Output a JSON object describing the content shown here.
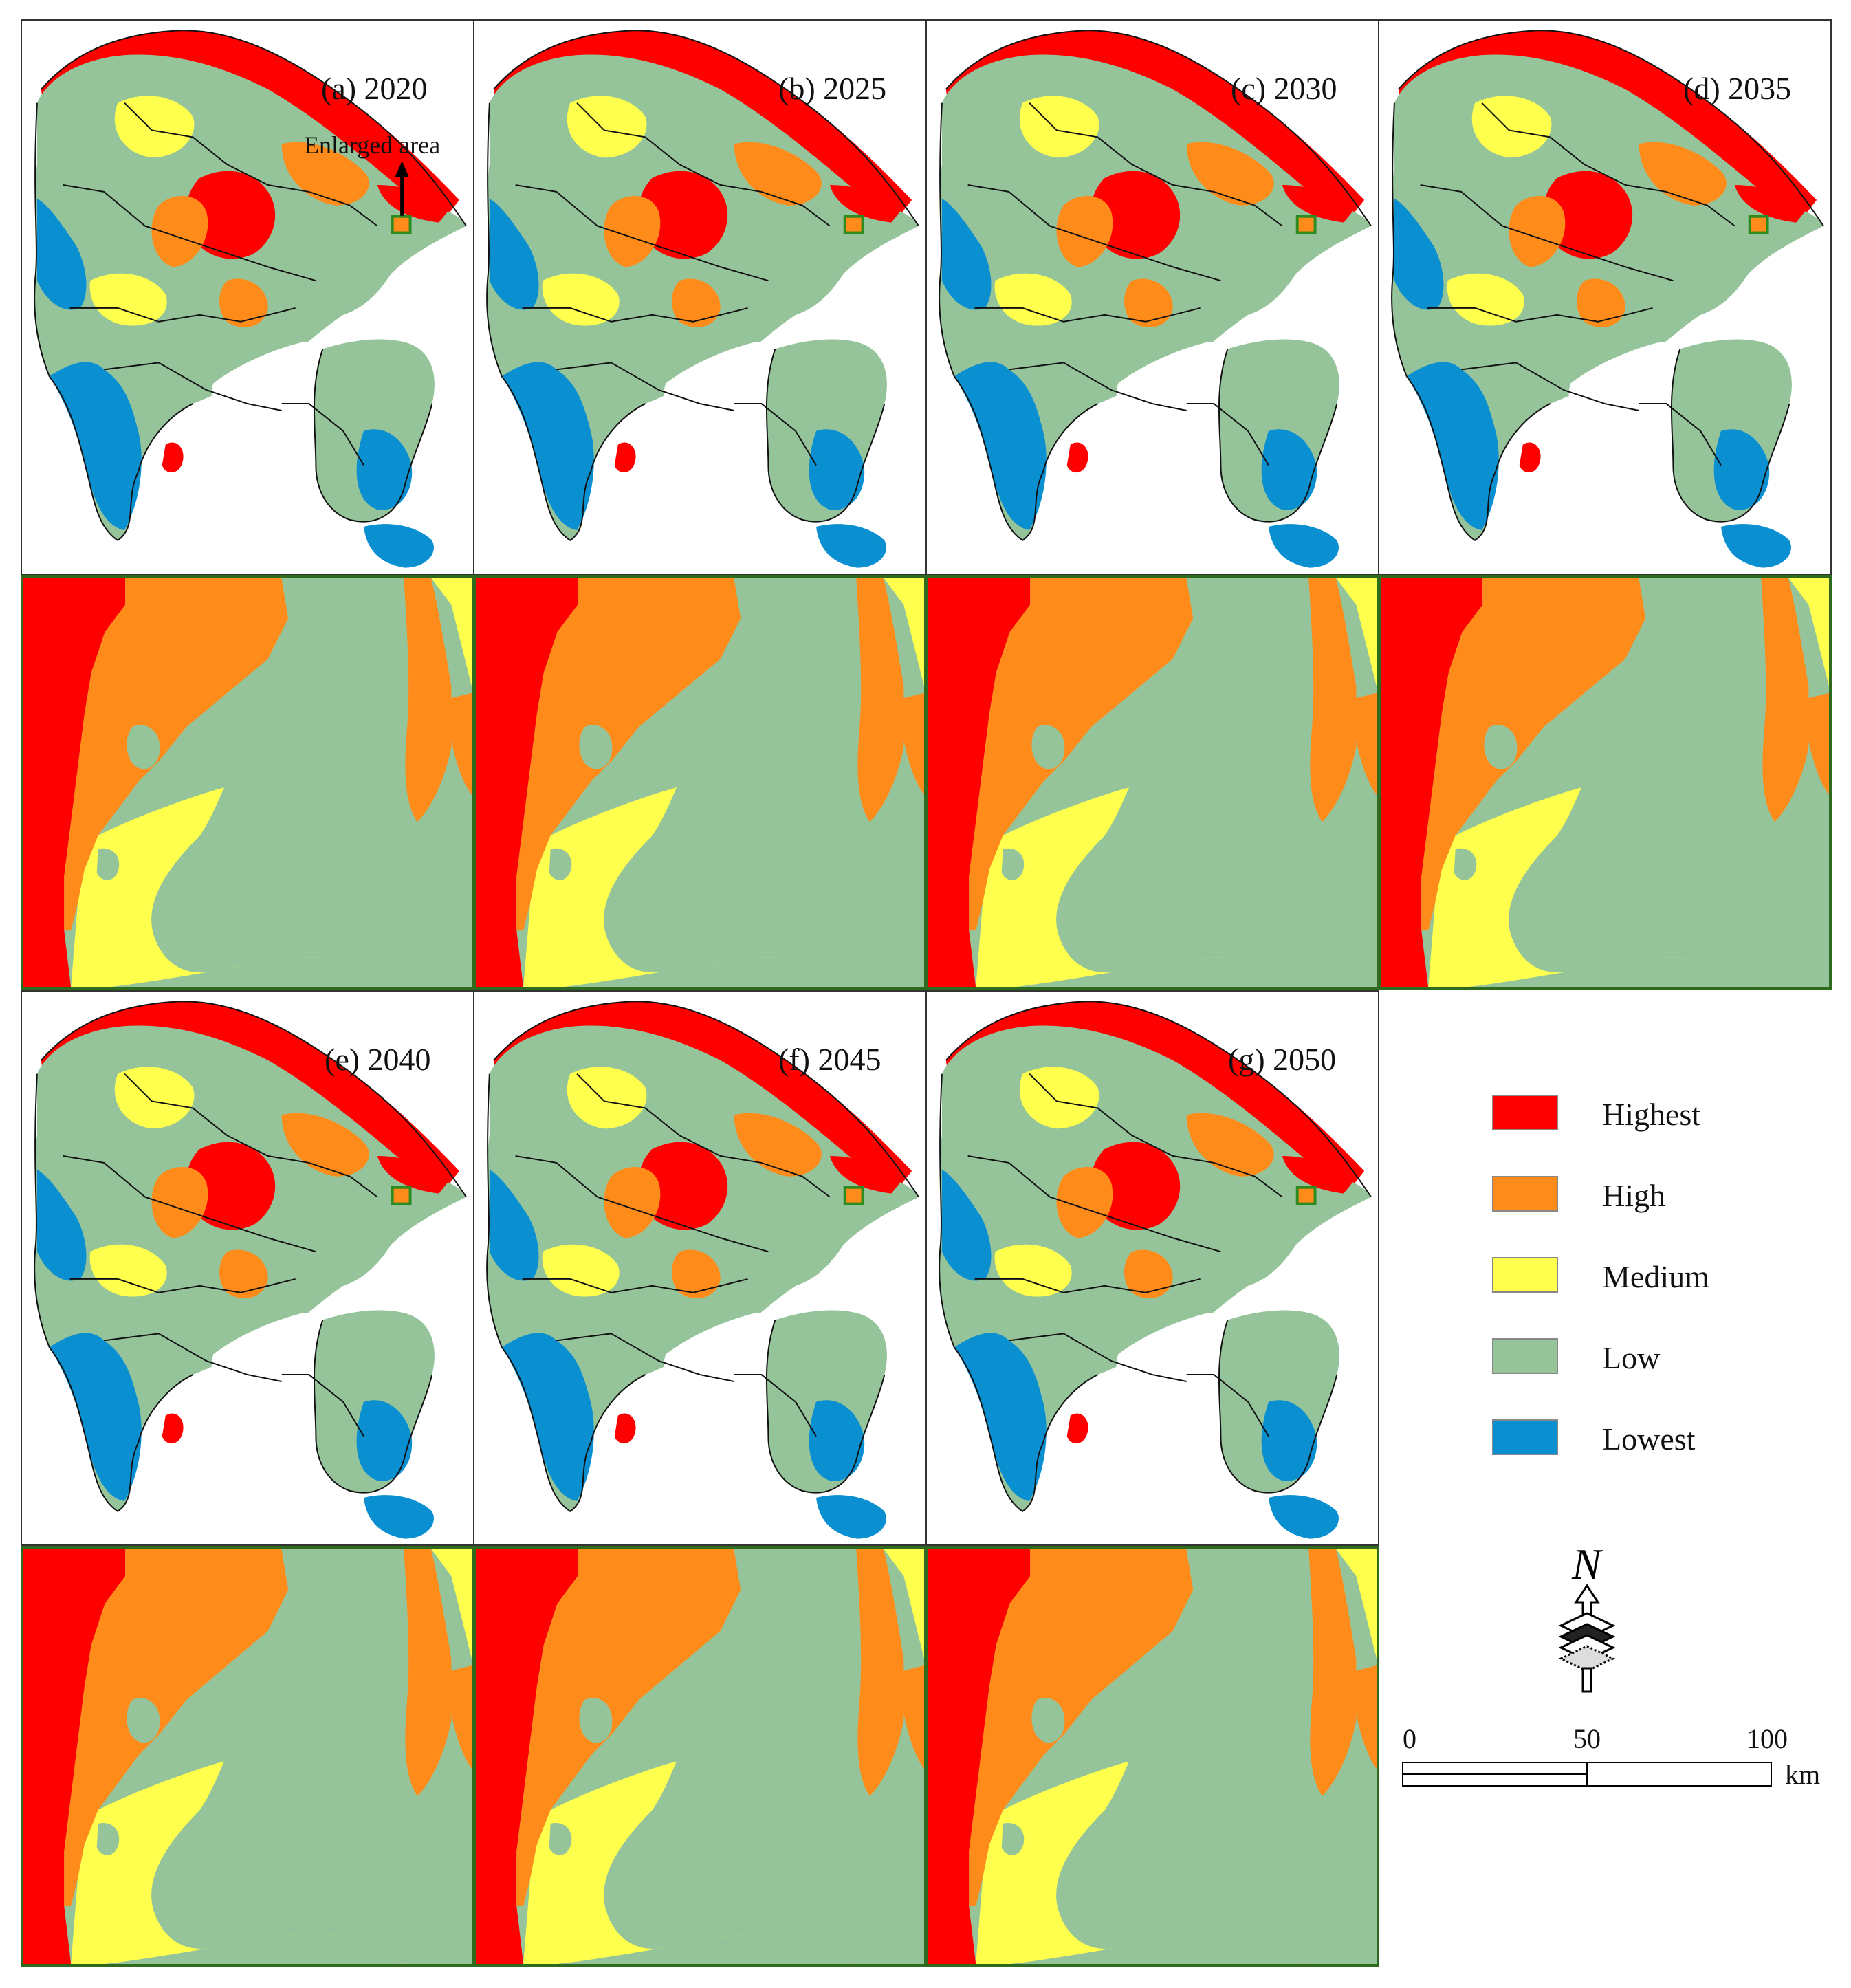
{
  "panels": [
    {
      "label": "(a) 2020",
      "level": 0
    },
    {
      "label": "(b) 2025",
      "level": 1
    },
    {
      "label": "(c) 2030",
      "level": 2
    },
    {
      "label": "(d) 2035",
      "level": 3
    },
    {
      "label": "(e) 2040",
      "level": 4
    },
    {
      "label": "(f) 2045",
      "level": 5
    },
    {
      "label": "(g) 2050",
      "level": 6
    }
  ],
  "enlarged_area_label": "Enlarged area",
  "legend": [
    {
      "label": "Highest",
      "color": "#ff0000"
    },
    {
      "label": "High",
      "color": "#ff8c1a"
    },
    {
      "label": "Medium",
      "color": "#ffff4d"
    },
    {
      "label": "Low",
      "color": "#95c49a"
    },
    {
      "label": "Lowest",
      "color": "#0a8fd1"
    }
  ],
  "north_arrow": {
    "letter": "N",
    "icon": "north-arrow-icon"
  },
  "scale_bar": {
    "ticks": [
      "0",
      "50",
      "100"
    ],
    "unit": "km"
  }
}
